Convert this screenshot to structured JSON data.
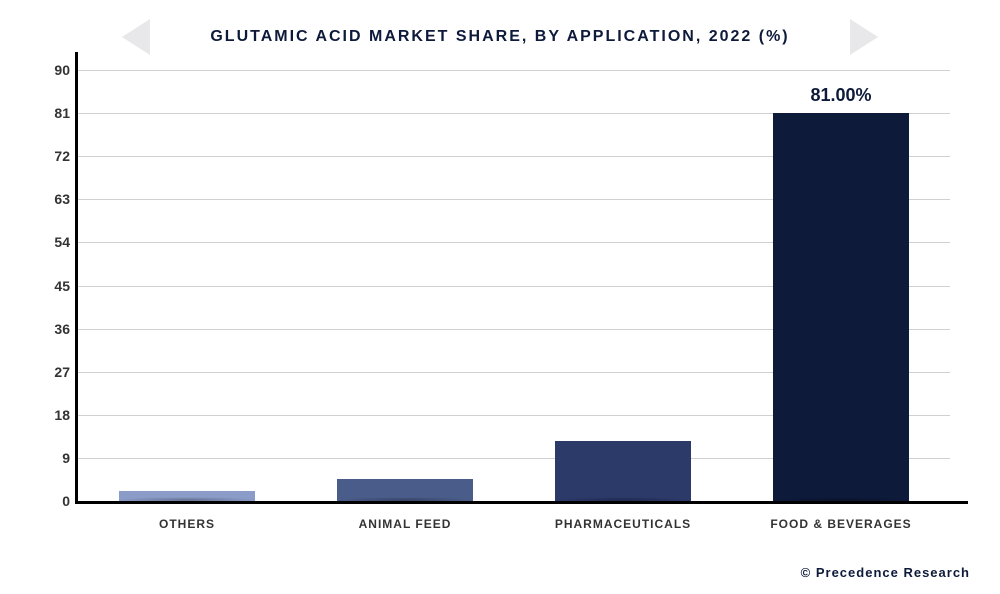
{
  "chart": {
    "type": "bar",
    "title": "Glutamic Acid Market Share, By Application, 2022 (%)",
    "title_fontsize": 16,
    "categories": [
      "Others",
      "Animal Feed",
      "Pharmaceuticals",
      "Food & Beverages"
    ],
    "values": [
      2.0,
      4.5,
      12.5,
      81.0
    ],
    "value_labels": [
      "",
      "",
      "",
      "81.00%"
    ],
    "bar_colors": [
      "#8a9cc7",
      "#4a5d8a",
      "#2c3a6a",
      "#0d1a3a"
    ],
    "bar_width": 0.62,
    "ylim": [
      0,
      90
    ],
    "ytick_step": 9,
    "yticks": [
      0,
      9,
      18,
      27,
      36,
      45,
      54,
      63,
      72,
      81,
      90
    ],
    "background_color": "#ffffff",
    "grid_color": "#d0d0d0",
    "axis_color": "#000000",
    "label_fontsize": 12,
    "value_label_fontsize": 18,
    "tick_fontsize": 14
  },
  "attribution": "© Precedence Research"
}
